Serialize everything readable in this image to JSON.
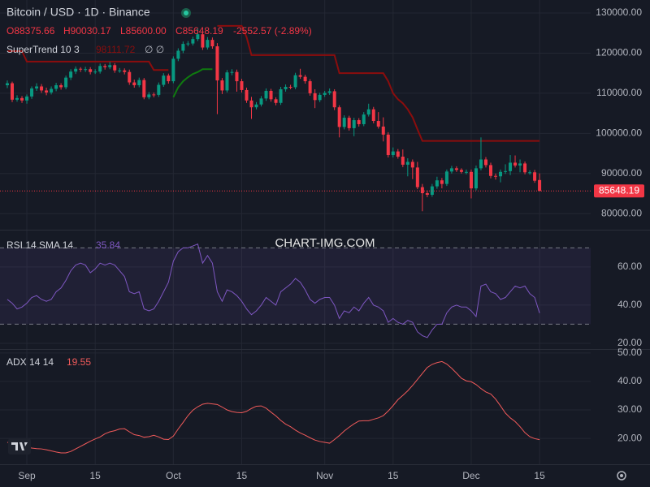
{
  "watermark": "CHART-IMG.COM",
  "chart_data": [
    {
      "type": "candlestick",
      "title": "Bitcoin / USD · 1D · Binance",
      "ohlc_labels": [
        "O88375.66",
        "H90030.17",
        "L85600.00",
        "C85648.19",
        "-2552.57 (-2.89%)"
      ],
      "overlay_label": "SuperTrend 10 3",
      "overlay_value": "98111.72",
      "categories": [
        null,
        null,
        null,
        null,
        "Sep",
        null,
        null,
        null,
        null,
        null,
        null,
        null,
        null,
        null,
        null,
        null,
        null,
        null,
        "15",
        null,
        null,
        null,
        null,
        null,
        null,
        null,
        null,
        null,
        null,
        null,
        null,
        null,
        null,
        null,
        "Oct",
        null,
        null,
        null,
        null,
        null,
        null,
        null,
        null,
        null,
        null,
        null,
        null,
        null,
        "15",
        null,
        null,
        null,
        null,
        null,
        null,
        null,
        null,
        null,
        null,
        null,
        null,
        null,
        null,
        null,
        null,
        "Nov",
        null,
        null,
        null,
        null,
        null,
        null,
        null,
        null,
        null,
        null,
        null,
        null,
        null,
        "15",
        null,
        null,
        null,
        null,
        null,
        null,
        null,
        null,
        null,
        null,
        null,
        null,
        null,
        null,
        null,
        "Dec",
        null,
        null,
        null,
        null,
        null,
        null,
        null,
        null,
        null,
        null,
        null,
        null,
        null,
        "15"
      ],
      "open": [
        112000,
        112500,
        108400,
        108800,
        108200,
        109200,
        111200,
        111700,
        110700,
        110200,
        111100,
        112000,
        111500,
        113900,
        115400,
        116100,
        115900,
        116000,
        115300,
        115400,
        116800,
        116500,
        117000,
        115700,
        115700,
        115300,
        112700,
        112000,
        113300,
        109000,
        109700,
        109600,
        112100,
        114400,
        113000,
        118600,
        120600,
        122300,
        122400,
        123500,
        124700,
        121400,
        123300,
        121700,
        113200,
        110700,
        115200,
        115300,
        113000,
        110800,
        108200,
        106500,
        107200,
        108700,
        110600,
        108500,
        107600,
        111000,
        111600,
        111500,
        114500,
        114100,
        113000,
        110000,
        108300,
        109600,
        110100,
        110500,
        106500,
        101600,
        103900,
        101300,
        103300,
        102300,
        104700,
        106000,
        103100,
        101700,
        99700,
        94600,
        95500,
        94200,
        92200,
        92900,
        91500,
        86600,
        85100,
        84700,
        86800,
        88300,
        87400,
        90500,
        91300,
        90900,
        90400,
        90400,
        86300,
        91300,
        93500,
        92100,
        89400,
        89300,
        90400,
        90600,
        92700,
        92000,
        92500,
        90300,
        90300,
        88375.66
      ],
      "high": [
        113200,
        112900,
        109500,
        109300,
        109700,
        111700,
        112500,
        112300,
        111400,
        111700,
        112600,
        112500,
        114400,
        116000,
        116700,
        116500,
        116600,
        116500,
        116000,
        117400,
        117300,
        117800,
        117500,
        116300,
        116200,
        115900,
        113400,
        113900,
        113800,
        110300,
        110200,
        112700,
        115000,
        114900,
        119200,
        121200,
        122900,
        123000,
        124100,
        126200,
        125200,
        124000,
        123900,
        122500,
        113800,
        115800,
        116000,
        115900,
        113600,
        111400,
        109100,
        107800,
        109300,
        111200,
        111100,
        109000,
        111600,
        112200,
        112100,
        115100,
        116100,
        114600,
        113500,
        111000,
        110100,
        110600,
        111200,
        111000,
        107000,
        104500,
        104400,
        103900,
        103800,
        105300,
        107400,
        106600,
        105300,
        104000,
        100300,
        96500,
        96100,
        96000,
        93800,
        93500,
        92900,
        87400,
        85800,
        87400,
        89200,
        88900,
        91000,
        91900,
        91800,
        91300,
        91000,
        91000,
        92000,
        99000,
        94100,
        92700,
        90000,
        91000,
        92300,
        94600,
        94500,
        93500,
        93000,
        90800,
        90900,
        90030.17
      ],
      "low": [
        111300,
        107800,
        107900,
        107600,
        107400,
        108600,
        110600,
        110100,
        109500,
        109700,
        110500,
        110900,
        111000,
        113300,
        114800,
        115300,
        115300,
        114700,
        114800,
        114900,
        115900,
        116000,
        115100,
        115100,
        114700,
        112100,
        111400,
        111500,
        108500,
        108500,
        109000,
        109100,
        111600,
        112400,
        112500,
        118000,
        120000,
        121700,
        121900,
        123000,
        120800,
        120900,
        121100,
        104800,
        109800,
        110200,
        114500,
        110400,
        110200,
        107600,
        103600,
        106000,
        106700,
        108100,
        107900,
        107000,
        107100,
        110400,
        111000,
        111000,
        113600,
        112400,
        109400,
        106300,
        107800,
        109100,
        109600,
        105800,
        99000,
        101000,
        100700,
        99300,
        101700,
        101800,
        104200,
        102500,
        101200,
        98000,
        94000,
        94000,
        93700,
        91600,
        89300,
        88600,
        86100,
        80600,
        84100,
        84200,
        86200,
        86300,
        86900,
        90000,
        90400,
        90000,
        89800,
        83800,
        85800,
        90800,
        91500,
        88800,
        88500,
        87800,
        89900,
        89600,
        91500,
        90300,
        89800,
        89700,
        87700,
        85600
      ],
      "close": [
        112500,
        108400,
        108800,
        108200,
        109200,
        111200,
        111700,
        110700,
        110200,
        111100,
        112000,
        111500,
        113900,
        115400,
        116100,
        115900,
        116000,
        115300,
        115400,
        116800,
        116500,
        117000,
        115700,
        115700,
        115300,
        112700,
        112000,
        113300,
        109000,
        109700,
        109600,
        112100,
        114400,
        113000,
        118600,
        120600,
        122300,
        122400,
        123500,
        124700,
        121400,
        123300,
        121700,
        113200,
        110700,
        115200,
        115300,
        113000,
        110800,
        108200,
        106500,
        107200,
        108700,
        110600,
        108500,
        107600,
        111000,
        111600,
        111500,
        114500,
        114100,
        113000,
        110000,
        108300,
        109600,
        110100,
        110500,
        106500,
        101600,
        103900,
        101300,
        103300,
        102300,
        104700,
        106000,
        103100,
        101700,
        99700,
        94600,
        95500,
        94200,
        92200,
        92900,
        91500,
        86600,
        85100,
        84700,
        86800,
        88300,
        87400,
        90500,
        91300,
        90900,
        90400,
        90400,
        86300,
        91300,
        93500,
        92100,
        89400,
        89300,
        90400,
        90600,
        92700,
        92000,
        92500,
        90300,
        90300,
        88200,
        85648.19
      ],
      "up_color": "#089981",
      "down_color": "#f23645",
      "overlays": [
        {
          "color": "#0f7b0f",
          "values": [
            null,
            null,
            null,
            null,
            null,
            null,
            null,
            null,
            null,
            null,
            null,
            null,
            null,
            null,
            null,
            null,
            null,
            null,
            null,
            null,
            null,
            null,
            null,
            null,
            null,
            null,
            null,
            null,
            null,
            null,
            null,
            null,
            null,
            null,
            109000,
            111500,
            113000,
            114000,
            114800,
            115300,
            116000,
            116000,
            116000,
            null,
            null,
            null,
            null,
            null,
            null,
            null,
            null,
            null,
            null,
            null,
            null,
            null,
            null,
            null,
            null,
            null,
            null,
            null,
            null,
            null,
            null,
            null,
            null,
            null,
            null,
            null,
            null,
            null,
            null,
            null,
            null,
            null,
            null,
            null,
            null,
            null,
            null,
            null,
            null,
            null,
            null,
            null,
            null,
            null,
            null,
            null,
            null,
            null,
            null,
            null,
            null,
            null,
            null,
            null,
            null,
            null,
            null,
            null,
            null,
            null,
            null,
            null,
            null,
            null,
            null,
            null
          ]
        },
        {
          "color": "#8b0d0d",
          "values": [
            120500,
            120500,
            120500,
            120500,
            117900,
            117900,
            117900,
            117900,
            117900,
            117900,
            117900,
            117900,
            117900,
            117900,
            117900,
            117900,
            117900,
            117900,
            117900,
            117900,
            117900,
            117900,
            117900,
            117900,
            117900,
            117900,
            117900,
            117900,
            117900,
            117900,
            115800,
            115800,
            115800,
            115800,
            null,
            null,
            null,
            null,
            null,
            null,
            null,
            null,
            null,
            126800,
            126800,
            126800,
            126800,
            126800,
            126800,
            124000,
            119500,
            119500,
            119500,
            119500,
            119500,
            119500,
            119500,
            119500,
            119500,
            119500,
            119500,
            119500,
            119500,
            119500,
            119500,
            119500,
            119500,
            119500,
            115000,
            115000,
            115000,
            115000,
            115000,
            115000,
            115000,
            115000,
            115000,
            115000,
            113000,
            110000,
            108500,
            107500,
            106000,
            104000,
            101000,
            98111.72,
            98111.72,
            98111.72,
            98111.72,
            98111.72,
            98111.72,
            98111.72,
            98111.72,
            98111.72,
            98111.72,
            98111.72,
            98111.72,
            98111.72,
            98111.72,
            98111.72,
            98111.72,
            98111.72,
            98111.72,
            98111.72,
            98111.72,
            98111.72,
            98111.72,
            98111.72,
            98111.72,
            98111.72
          ]
        }
      ],
      "ylim": [
        76000,
        133240
      ],
      "yticks": [
        {
          "value": 80000,
          "label": "80000.00"
        },
        {
          "value": 90000,
          "label": "90000.00"
        },
        {
          "value": 100000,
          "label": "100000.00"
        },
        {
          "value": 110000,
          "label": "110000.00"
        },
        {
          "value": 120000,
          "label": "120000.00"
        },
        {
          "value": 130000,
          "label": "130000.00"
        }
      ],
      "grid": true
    },
    {
      "type": "line",
      "title": "RSI 14 SMA 14",
      "series": [
        {
          "color": "#7e57c2",
          "values": [
            43,
            41,
            38,
            39,
            41,
            44,
            45,
            43,
            42,
            43,
            47,
            49,
            53,
            58,
            61,
            62,
            61,
            57,
            59,
            62,
            61,
            62,
            61,
            58,
            55,
            47,
            46,
            47,
            38,
            37,
            38,
            42,
            47,
            52,
            63,
            68,
            70,
            70,
            71,
            72,
            62,
            66,
            62,
            47,
            42,
            48,
            47,
            45,
            42,
            38,
            35,
            37,
            40,
            44,
            42,
            40,
            47,
            49,
            51,
            54,
            52,
            48,
            43,
            41,
            43,
            44,
            44,
            40,
            33,
            37,
            36,
            39,
            37,
            41,
            44,
            40,
            39,
            37,
            31,
            33,
            31,
            30,
            32,
            31,
            26,
            24,
            23,
            27,
            30,
            30,
            36,
            39,
            40,
            39,
            39,
            37,
            34,
            50,
            51,
            47,
            46,
            43,
            44,
            47,
            50,
            49,
            50,
            46,
            44,
            35.84
          ]
        }
      ],
      "hlines": [
        70,
        30
      ],
      "ylim": [
        17,
        79.1
      ],
      "yticks": [
        {
          "value": 20,
          "label": "20.00"
        },
        {
          "value": 40,
          "label": "40.00"
        },
        {
          "value": 60,
          "label": "60.00"
        }
      ],
      "grid": true
    },
    {
      "type": "line",
      "title": "ADX 14 14",
      "series": [
        {
          "color": "#f05a5a",
          "values": [
            18.6,
            18.3,
            17.6,
            17.2,
            16.9,
            16.6,
            16.4,
            16.3,
            16.0,
            15.6,
            15.2,
            14.9,
            14.9,
            15.4,
            16.3,
            17.2,
            18.1,
            19.0,
            19.8,
            20.5,
            21.6,
            22.3,
            22.7,
            23.3,
            23.4,
            22.3,
            21.3,
            21.0,
            20.4,
            20.6,
            21.1,
            20.5,
            19.7,
            19.6,
            20.8,
            23.3,
            25.6,
            28.0,
            29.9,
            31.1,
            32.0,
            32.3,
            32.1,
            31.9,
            31.0,
            30.0,
            29.4,
            29.1,
            29.0,
            29.5,
            30.5,
            31.3,
            31.4,
            30.6,
            29.2,
            27.9,
            26.3,
            25.0,
            24.1,
            22.9,
            21.9,
            21.1,
            20.2,
            19.4,
            18.9,
            18.6,
            18.3,
            19.6,
            21.0,
            22.6,
            23.9,
            25.1,
            26.1,
            26.2,
            26.2,
            26.7,
            27.2,
            28.0,
            29.6,
            31.5,
            33.6,
            35.1,
            36.7,
            38.6,
            40.7,
            42.8,
            44.9,
            46.0,
            46.6,
            47.0,
            46.1,
            44.6,
            42.9,
            41.1,
            40.2,
            39.9,
            38.9,
            37.5,
            36.3,
            35.6,
            33.8,
            31.4,
            28.9,
            27.2,
            25.9,
            24.1,
            22.0,
            20.6,
            19.9,
            19.55
          ]
        }
      ],
      "ylim": [
        10.9,
        51.1
      ],
      "yticks": [
        {
          "value": 20,
          "label": "20.00"
        },
        {
          "value": 30,
          "label": "30.00"
        },
        {
          "value": 40,
          "label": "40.00"
        },
        {
          "value": 50,
          "label": "50.00"
        }
      ],
      "grid": true
    }
  ]
}
